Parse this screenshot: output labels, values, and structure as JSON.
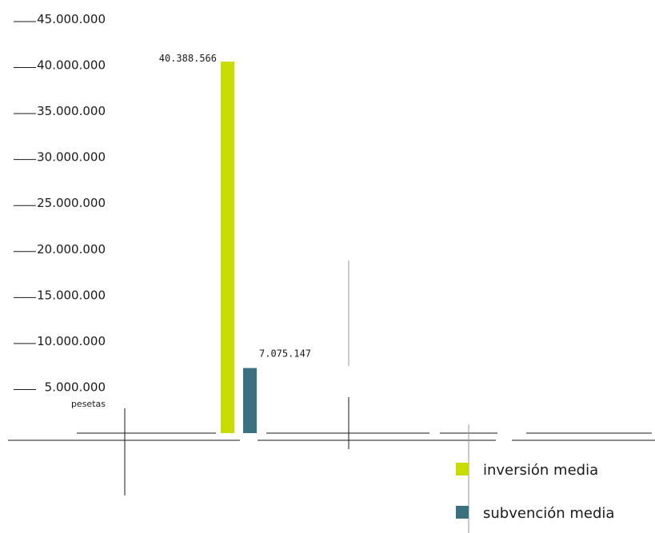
{
  "chart_data": {
    "type": "bar",
    "unit": "pesetas",
    "ylim": [
      0,
      45000000
    ],
    "y_ticks": [
      {
        "value": 5000000,
        "label": "5.000.000"
      },
      {
        "value": 10000000,
        "label": "10.000.000"
      },
      {
        "value": 15000000,
        "label": "15.000.000"
      },
      {
        "value": 20000000,
        "label": "20.000.000"
      },
      {
        "value": 25000000,
        "label": "25.000.000"
      },
      {
        "value": 30000000,
        "label": "30.000.000"
      },
      {
        "value": 35000000,
        "label": "35.000.000"
      },
      {
        "value": 40000000,
        "label": "40.000.000"
      },
      {
        "value": 45000000,
        "label": "45.000.000"
      }
    ],
    "series": [
      {
        "name": "inversión media",
        "value": 40388566,
        "value_label": "40.388.566",
        "color": "#c8dc00"
      },
      {
        "name": "subvención media",
        "value": 7075147,
        "value_label": "7.075.147",
        "color": "#3a7080"
      }
    ],
    "legend": {
      "position": "bottom-right"
    },
    "grid": false
  }
}
